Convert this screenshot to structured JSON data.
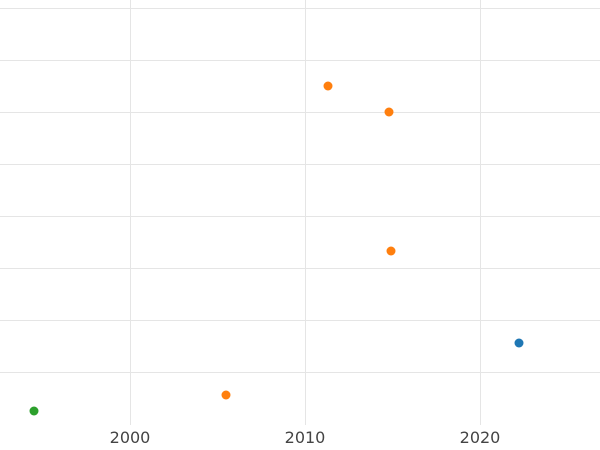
{
  "chart_data": {
    "type": "scatter",
    "title": "",
    "xlabel": "",
    "ylabel": "",
    "x_ticks": [
      2000,
      2010,
      2020
    ],
    "xlim": [
      1992.6,
      2026.9
    ],
    "ylim": [
      -0.5,
      8.15
    ],
    "y_gridlines": [
      1,
      2,
      3,
      4,
      5,
      6,
      7,
      8
    ],
    "grid": true,
    "legend": "none",
    "background_color": "#ffffff",
    "gridline_color": "#e5e5e5",
    "tick_label_color": "#444444",
    "series": [
      {
        "name": "green",
        "color": "#2ca02c",
        "points": [
          {
            "x": 1994.5,
            "y": 0.25
          }
        ]
      },
      {
        "name": "orange",
        "color": "#ff7f0e",
        "points": [
          {
            "x": 2005.5,
            "y": 0.56
          },
          {
            "x": 2011.3,
            "y": 6.5
          },
          {
            "x": 2014.8,
            "y": 6.0
          },
          {
            "x": 2014.9,
            "y": 3.33
          }
        ]
      },
      {
        "name": "blue",
        "color": "#1f77b4",
        "points": [
          {
            "x": 2022.2,
            "y": 1.56
          }
        ]
      }
    ]
  }
}
